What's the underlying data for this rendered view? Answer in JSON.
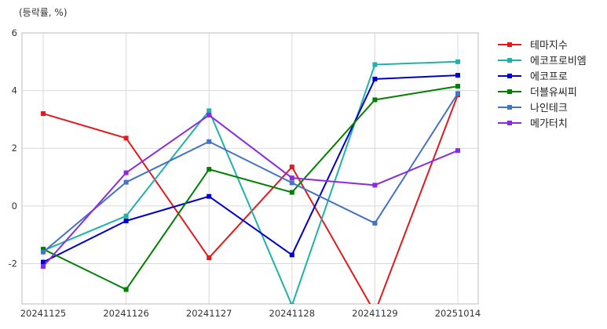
{
  "chart_data": {
    "type": "line",
    "unit_label": "(등락률, %)",
    "x": [
      "20241125",
      "20241126",
      "20241127",
      "20241128",
      "20241129",
      "20251014"
    ],
    "ylim": [
      -3.4,
      6.0
    ],
    "yticks": [
      -2,
      0,
      2,
      4,
      6
    ],
    "grid": true,
    "legend_position": "right",
    "series": [
      {
        "name": "테마지수",
        "color": "#e31a1c",
        "values": [
          3.2,
          2.35,
          -1.8,
          1.35,
          -3.7,
          3.85
        ]
      },
      {
        "name": "에코프로비엠",
        "color": "#20b2aa",
        "values": [
          -1.55,
          -0.35,
          3.3,
          -3.45,
          4.9,
          5.0
        ]
      },
      {
        "name": "에코프로",
        "color": "#0000cd",
        "values": [
          -1.95,
          -0.52,
          0.33,
          -1.7,
          4.4,
          4.53
        ]
      },
      {
        "name": "더블유씨피",
        "color": "#008000",
        "values": [
          -1.5,
          -2.9,
          1.27,
          0.47,
          3.68,
          4.15
        ]
      },
      {
        "name": "나인테크",
        "color": "#4472c4",
        "values": [
          -1.6,
          0.82,
          2.23,
          0.8,
          -0.6,
          3.9
        ]
      },
      {
        "name": "메가터치",
        "color": "#8a2be2",
        "values": [
          -2.1,
          1.15,
          3.15,
          0.97,
          0.72,
          1.92
        ]
      }
    ]
  }
}
